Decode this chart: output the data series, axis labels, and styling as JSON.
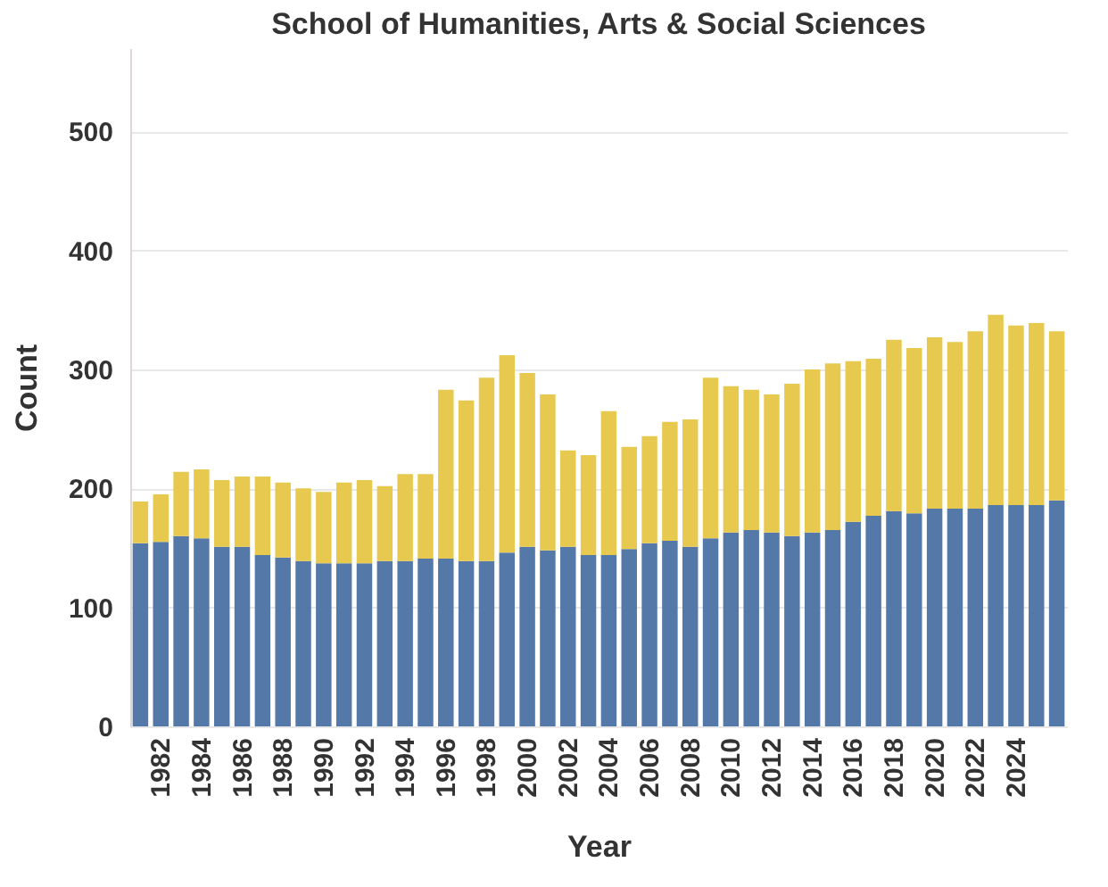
{
  "chart_data": {
    "type": "bar",
    "stacked": true,
    "title": "School of Humanities, Arts & Social Sciences",
    "xlabel": "Year",
    "ylabel": "Count",
    "categories": [
      null,
      "1982",
      null,
      "1984",
      null,
      "1986",
      null,
      "1988",
      null,
      "1990",
      null,
      "1992",
      null,
      "1994",
      null,
      "1996",
      null,
      "1998",
      null,
      "2000",
      null,
      "2002",
      null,
      "2004",
      null,
      "2006",
      null,
      "2008",
      null,
      "2010",
      null,
      "2012",
      null,
      "2014",
      null,
      "2016",
      null,
      "2018",
      null,
      "2020",
      null,
      "2022",
      null,
      "2024",
      null,
      null
    ],
    "series": [
      {
        "color": "#5478a8",
        "values": [
          154,
          155,
          160,
          158,
          151,
          151,
          144,
          142,
          139,
          137,
          137,
          137,
          139,
          139,
          141,
          141,
          139,
          139,
          146,
          151,
          148,
          151,
          144,
          144,
          149,
          154,
          156,
          151,
          158,
          163,
          165,
          163,
          160,
          163,
          165,
          172,
          177,
          181,
          179,
          183,
          183,
          183,
          186,
          186,
          186,
          190
        ]
      },
      {
        "color": "#e8c94f",
        "values": [
          35,
          40,
          54,
          58,
          56,
          59,
          66,
          63,
          61,
          60,
          68,
          70,
          63,
          73,
          71,
          142,
          135,
          154,
          166,
          146,
          131,
          81,
          84,
          121,
          86,
          90,
          100,
          107,
          135,
          123,
          118,
          116,
          128,
          137,
          140,
          135,
          132,
          144,
          139,
          144,
          140,
          149,
          160,
          151,
          153,
          142
        ]
      }
    ],
    "ylim": [
      0,
      570
    ],
    "yticks": [
      0,
      100,
      200,
      300,
      400,
      500
    ],
    "grid": "y",
    "legend": false
  }
}
